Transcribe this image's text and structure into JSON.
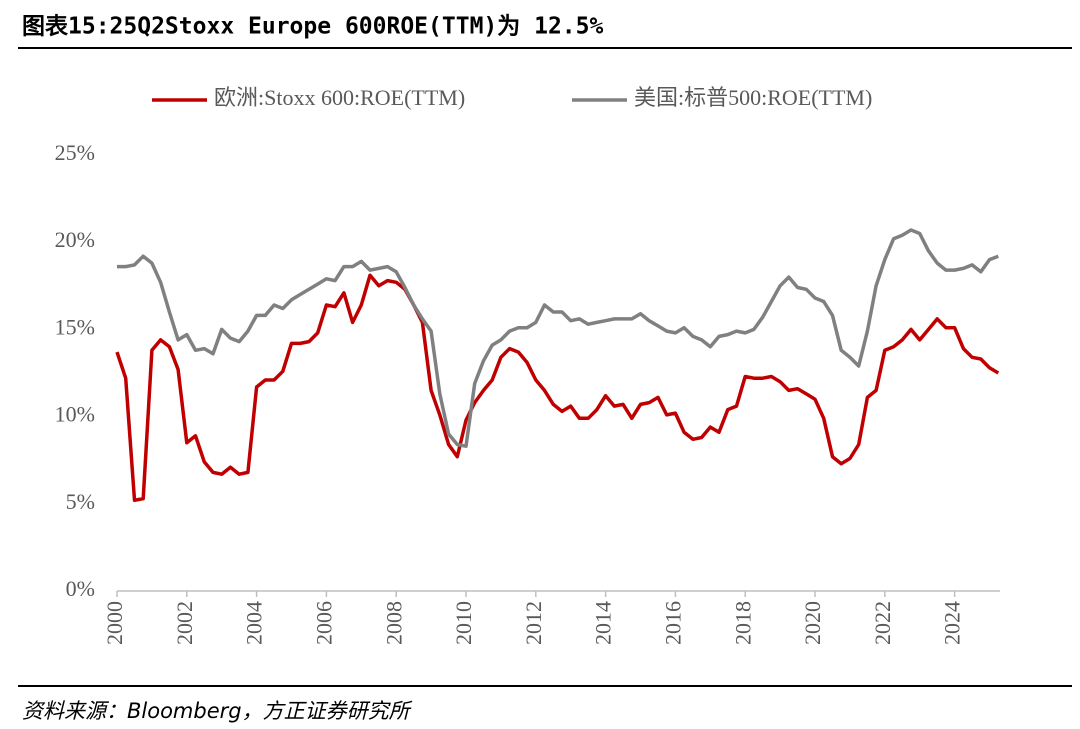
{
  "chart_data": {
    "type": "line",
    "title": "图表15:25Q2Stoxx Europe 600ROE(TTM)为 12.5%",
    "source": "资料来源：Bloomberg，方正证券研究所",
    "x": [
      2000,
      2000.25,
      2000.5,
      2000.75,
      2001,
      2001.25,
      2001.5,
      2001.75,
      2002,
      2002.25,
      2002.5,
      2002.75,
      2003,
      2003.25,
      2003.5,
      2003.75,
      2004,
      2004.25,
      2004.5,
      2004.75,
      2005,
      2005.25,
      2005.5,
      2005.75,
      2006,
      2006.25,
      2006.5,
      2006.75,
      2007,
      2007.25,
      2007.5,
      2007.75,
      2008,
      2008.25,
      2008.5,
      2008.75,
      2009,
      2009.25,
      2009.5,
      2009.75,
      2010,
      2010.25,
      2010.5,
      2010.75,
      2011,
      2011.25,
      2011.5,
      2011.75,
      2012,
      2012.25,
      2012.5,
      2012.75,
      2013,
      2013.25,
      2013.5,
      2013.75,
      2014,
      2014.25,
      2014.5,
      2014.75,
      2015,
      2015.25,
      2015.5,
      2015.75,
      2016,
      2016.25,
      2016.5,
      2016.75,
      2017,
      2017.25,
      2017.5,
      2017.75,
      2018,
      2018.25,
      2018.5,
      2018.75,
      2019,
      2019.25,
      2019.5,
      2019.75,
      2020,
      2020.25,
      2020.5,
      2020.75,
      2021,
      2021.25,
      2021.5,
      2021.75,
      2022,
      2022.25,
      2022.5,
      2022.75,
      2023,
      2023.25,
      2023.5,
      2023.75,
      2024,
      2024.25,
      2024.5,
      2024.75,
      2025,
      2025.25
    ],
    "series": [
      {
        "name": "欧洲:Stoxx 600:ROE(TTM)",
        "color": "#c00000",
        "values": [
          13.7,
          12.2,
          5.2,
          5.3,
          13.8,
          14.4,
          14.0,
          12.7,
          8.5,
          8.9,
          7.4,
          6.8,
          6.7,
          7.1,
          6.7,
          6.8,
          11.7,
          12.1,
          12.1,
          12.6,
          14.2,
          14.2,
          14.3,
          14.8,
          16.4,
          16.3,
          17.1,
          15.4,
          16.4,
          18.1,
          17.5,
          17.8,
          17.7,
          17.3,
          16.4,
          15.4,
          11.5,
          10.1,
          8.4,
          7.7,
          9.8,
          10.8,
          11.5,
          12.1,
          13.4,
          13.9,
          13.7,
          13.1,
          12.1,
          11.5,
          10.7,
          10.3,
          10.6,
          9.9,
          9.9,
          10.4,
          11.2,
          10.6,
          10.7,
          9.9,
          10.7,
          10.8,
          11.1,
          10.1,
          10.2,
          9.1,
          8.7,
          8.8,
          9.4,
          9.1,
          10.4,
          10.6,
          12.3,
          12.2,
          12.2,
          12.3,
          12.0,
          11.5,
          11.6,
          11.3,
          11.0,
          9.9,
          7.7,
          7.3,
          7.6,
          8.4,
          11.1,
          11.5,
          13.8,
          14.0,
          14.4,
          15.0,
          14.4,
          15.0,
          15.6,
          15.1,
          15.1,
          13.9,
          13.4,
          13.3,
          12.8,
          12.5
        ]
      },
      {
        "name": "美国:标普500:ROE(TTM)",
        "color": "#808080",
        "values": [
          18.6,
          18.6,
          18.7,
          19.2,
          18.8,
          17.7,
          16.0,
          14.4,
          14.7,
          13.8,
          13.9,
          13.6,
          15.0,
          14.5,
          14.3,
          14.9,
          15.8,
          15.8,
          16.4,
          16.2,
          16.7,
          17.0,
          17.3,
          17.6,
          17.9,
          17.8,
          18.6,
          18.6,
          18.9,
          18.4,
          18.5,
          18.6,
          18.3,
          17.4,
          16.4,
          15.6,
          14.9,
          11.3,
          9.0,
          8.4,
          8.3,
          11.9,
          13.2,
          14.1,
          14.4,
          14.9,
          15.1,
          15.1,
          15.4,
          16.4,
          16.0,
          16.0,
          15.5,
          15.6,
          15.3,
          15.4,
          15.5,
          15.6,
          15.6,
          15.6,
          15.9,
          15.5,
          15.2,
          14.9,
          14.8,
          15.1,
          14.6,
          14.4,
          14.0,
          14.6,
          14.7,
          14.9,
          14.8,
          15.0,
          15.7,
          16.6,
          17.5,
          18.0,
          17.4,
          17.3,
          16.8,
          16.6,
          15.8,
          13.8,
          13.4,
          12.9,
          14.9,
          17.5,
          19.0,
          20.2,
          20.4,
          20.7,
          20.5,
          19.5,
          18.8,
          18.4,
          18.4,
          18.5,
          18.7,
          18.3,
          19.0,
          19.2
        ]
      }
    ],
    "xlim": [
      2000,
      2025.3
    ],
    "xticks": [
      2000,
      2002,
      2004,
      2006,
      2008,
      2010,
      2012,
      2014,
      2016,
      2018,
      2020,
      2022,
      2024
    ],
    "ylim": [
      0,
      25
    ],
    "yticks": [
      {
        "value": 0,
        "label": "0%"
      },
      {
        "value": 5,
        "label": "5%"
      },
      {
        "value": 10,
        "label": "10%"
      },
      {
        "value": 15,
        "label": "15%"
      },
      {
        "value": 20,
        "label": "20%"
      },
      {
        "value": 25,
        "label": "25%"
      }
    ],
    "legend": "top"
  }
}
